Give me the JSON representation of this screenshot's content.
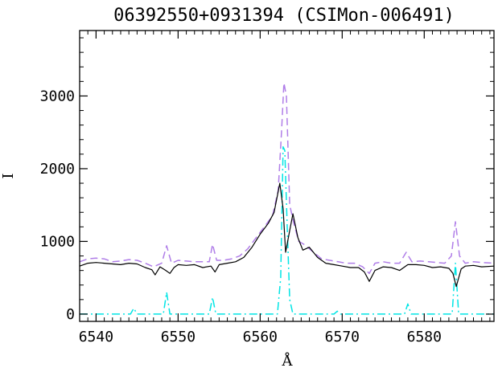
{
  "chart_data": {
    "type": "line",
    "title": "06392550+0931394 (CSIMon-006491)",
    "xlabel": "Å",
    "ylabel": "I",
    "xlim": [
      6538,
      6588.5
    ],
    "ylim": [
      -100,
      3900
    ],
    "x_ticks": [
      6540,
      6550,
      6560,
      6570,
      6580
    ],
    "y_ticks": [
      0,
      1000,
      2000,
      3000
    ],
    "grid": false,
    "legend": "none",
    "series": [
      {
        "color": "#000000",
        "style": "solid",
        "points": [
          [
            6538.0,
            660
          ],
          [
            6539.0,
            700
          ],
          [
            6540.0,
            710
          ],
          [
            6541.0,
            700
          ],
          [
            6542.0,
            690
          ],
          [
            6543.0,
            680
          ],
          [
            6544.0,
            700
          ],
          [
            6545.0,
            690
          ],
          [
            6546.0,
            640
          ],
          [
            6546.8,
            610
          ],
          [
            6547.2,
            540
          ],
          [
            6547.8,
            650
          ],
          [
            6548.5,
            600
          ],
          [
            6549.0,
            560
          ],
          [
            6549.5,
            640
          ],
          [
            6550.0,
            680
          ],
          [
            6551.0,
            670
          ],
          [
            6552.0,
            680
          ],
          [
            6553.0,
            640
          ],
          [
            6554.0,
            660
          ],
          [
            6554.5,
            580
          ],
          [
            6555.0,
            680
          ],
          [
            6556.0,
            700
          ],
          [
            6557.0,
            720
          ],
          [
            6558.0,
            780
          ],
          [
            6559.0,
            920
          ],
          [
            6560.0,
            1100
          ],
          [
            6561.0,
            1250
          ],
          [
            6561.7,
            1400
          ],
          [
            6562.4,
            1800
          ],
          [
            6562.8,
            1450
          ],
          [
            6563.1,
            850
          ],
          [
            6563.6,
            1150
          ],
          [
            6564.0,
            1380
          ],
          [
            6564.6,
            1050
          ],
          [
            6565.2,
            880
          ],
          [
            6566.0,
            920
          ],
          [
            6567.0,
            780
          ],
          [
            6568.0,
            700
          ],
          [
            6569.0,
            680
          ],
          [
            6570.0,
            660
          ],
          [
            6571.0,
            640
          ],
          [
            6572.0,
            640
          ],
          [
            6572.7,
            580
          ],
          [
            6573.3,
            450
          ],
          [
            6574.0,
            600
          ],
          [
            6575.0,
            650
          ],
          [
            6576.0,
            640
          ],
          [
            6577.0,
            600
          ],
          [
            6578.0,
            680
          ],
          [
            6579.0,
            680
          ],
          [
            6580.0,
            670
          ],
          [
            6581.0,
            640
          ],
          [
            6582.0,
            650
          ],
          [
            6583.0,
            630
          ],
          [
            6583.5,
            560
          ],
          [
            6583.9,
            380
          ],
          [
            6584.5,
            620
          ],
          [
            6585.0,
            660
          ],
          [
            6586.0,
            670
          ],
          [
            6587.0,
            650
          ],
          [
            6588.5,
            660
          ]
        ]
      },
      {
        "color": "#b07ee8",
        "style": "dashed",
        "points": [
          [
            6538.0,
            720
          ],
          [
            6539.0,
            760
          ],
          [
            6540.0,
            770
          ],
          [
            6541.0,
            760
          ],
          [
            6542.0,
            720
          ],
          [
            6543.0,
            730
          ],
          [
            6544.0,
            750
          ],
          [
            6545.0,
            740
          ],
          [
            6546.0,
            700
          ],
          [
            6547.0,
            650
          ],
          [
            6548.0,
            700
          ],
          [
            6548.6,
            940
          ],
          [
            6549.2,
            700
          ],
          [
            6550.0,
            740
          ],
          [
            6551.0,
            730
          ],
          [
            6552.0,
            720
          ],
          [
            6553.0,
            720
          ],
          [
            6553.8,
            720
          ],
          [
            6554.2,
            960
          ],
          [
            6554.7,
            740
          ],
          [
            6555.5,
            740
          ],
          [
            6556.5,
            760
          ],
          [
            6557.5,
            800
          ],
          [
            6558.5,
            900
          ],
          [
            6559.5,
            1050
          ],
          [
            6560.5,
            1200
          ],
          [
            6561.5,
            1350
          ],
          [
            6562.2,
            1700
          ],
          [
            6562.6,
            2500
          ],
          [
            6562.9,
            3180
          ],
          [
            6563.2,
            3000
          ],
          [
            6563.6,
            1500
          ],
          [
            6564.1,
            1250
          ],
          [
            6564.7,
            1000
          ],
          [
            6565.5,
            950
          ],
          [
            6566.5,
            850
          ],
          [
            6567.5,
            760
          ],
          [
            6568.5,
            740
          ],
          [
            6569.5,
            720
          ],
          [
            6570.5,
            700
          ],
          [
            6571.5,
            700
          ],
          [
            6572.5,
            650
          ],
          [
            6573.3,
            560
          ],
          [
            6574.0,
            700
          ],
          [
            6575.0,
            720
          ],
          [
            6576.0,
            700
          ],
          [
            6577.0,
            700
          ],
          [
            6577.8,
            850
          ],
          [
            6578.5,
            720
          ],
          [
            6579.5,
            730
          ],
          [
            6580.5,
            720
          ],
          [
            6581.5,
            710
          ],
          [
            6582.5,
            700
          ],
          [
            6583.3,
            800
          ],
          [
            6583.8,
            1270
          ],
          [
            6584.3,
            800
          ],
          [
            6585.0,
            700
          ],
          [
            6586.0,
            720
          ],
          [
            6587.0,
            710
          ],
          [
            6588.5,
            700
          ]
        ]
      },
      {
        "color": "#00e5e5",
        "style": "dashdot",
        "points": [
          [
            6538.0,
            0
          ],
          [
            6544.2,
            0
          ],
          [
            6544.6,
            80
          ],
          [
            6545.0,
            0
          ],
          [
            6548.2,
            0
          ],
          [
            6548.6,
            300
          ],
          [
            6549.0,
            0
          ],
          [
            6553.8,
            0
          ],
          [
            6554.2,
            230
          ],
          [
            6554.6,
            0
          ],
          [
            6562.1,
            0
          ],
          [
            6562.5,
            500
          ],
          [
            6562.8,
            2300
          ],
          [
            6563.0,
            2250
          ],
          [
            6563.3,
            1200
          ],
          [
            6563.6,
            200
          ],
          [
            6564.0,
            0
          ],
          [
            6569.0,
            0
          ],
          [
            6569.4,
            40
          ],
          [
            6569.8,
            0
          ],
          [
            6577.6,
            0
          ],
          [
            6578.0,
            140
          ],
          [
            6578.4,
            0
          ],
          [
            6583.4,
            0
          ],
          [
            6583.8,
            700
          ],
          [
            6584.2,
            0
          ],
          [
            6588.5,
            0
          ]
        ]
      }
    ]
  }
}
